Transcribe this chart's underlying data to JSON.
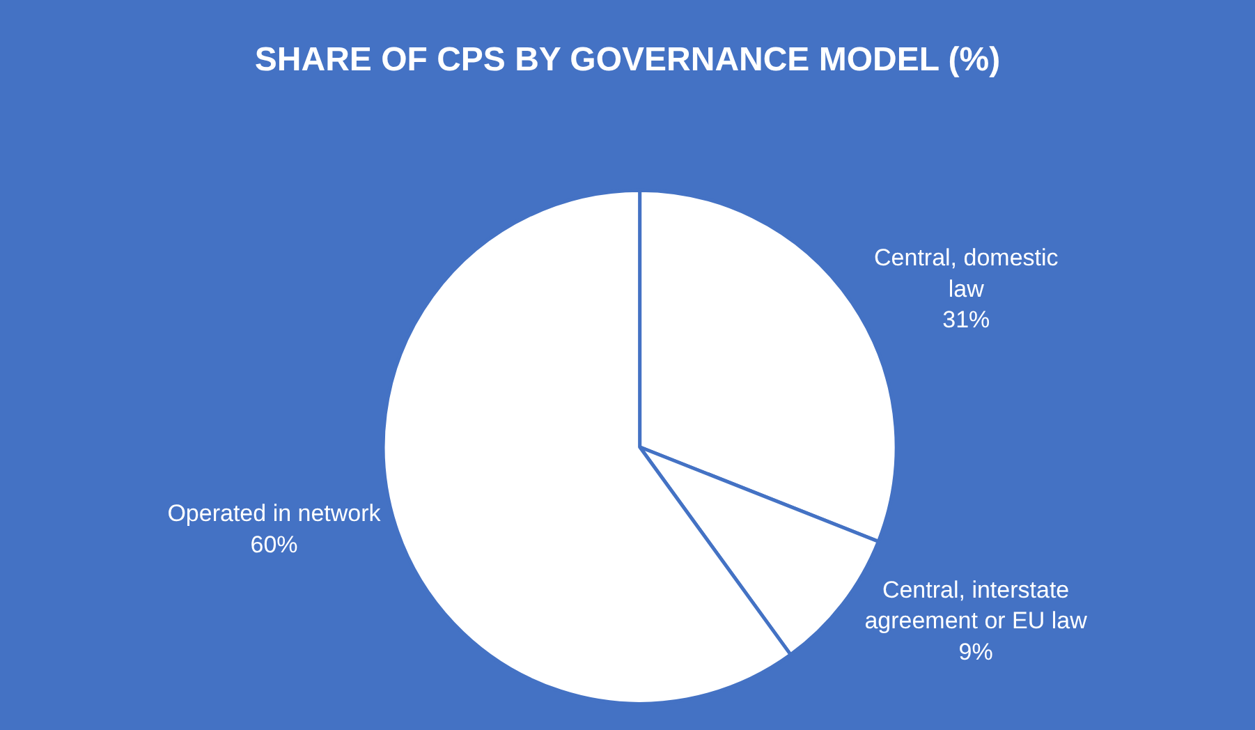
{
  "chart_data": {
    "type": "pie",
    "title": "SHARE OF CPS BY GOVERNANCE MODEL (%)",
    "categories": [
      "Central, domestic law",
      "Central, interstate agreement or EU law",
      "Operated in network"
    ],
    "values": [
      31,
      9,
      60
    ],
    "colors": [
      "#ffffff",
      "#ffffff",
      "#ffffff"
    ],
    "value_labels": [
      "31%",
      "9%",
      "60%"
    ],
    "legend": false
  }
}
